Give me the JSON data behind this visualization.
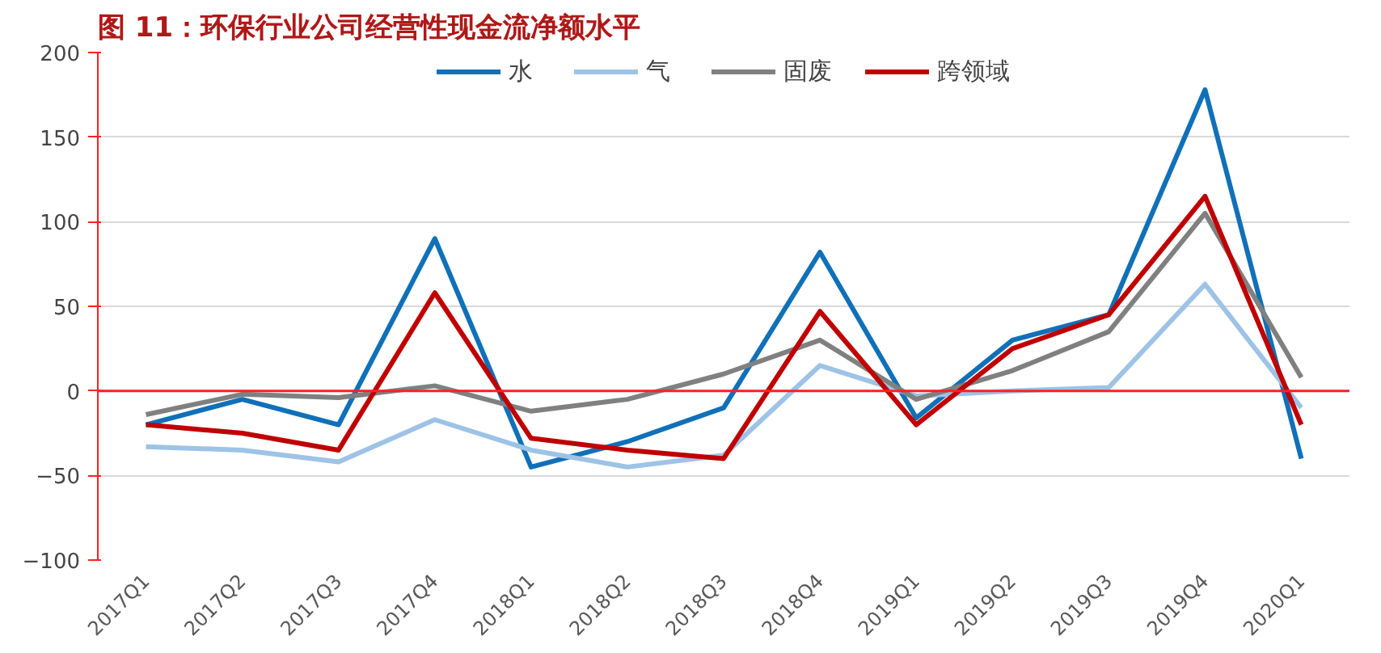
{
  "chart_data": {
    "type": "line",
    "title": "图 11：环保行业公司经营性现金流净额水平",
    "categories": [
      "2017Q1",
      "2017Q2",
      "2017Q3",
      "2017Q4",
      "2018Q1",
      "2018Q2",
      "2018Q3",
      "2018Q4",
      "2019Q1",
      "2019Q2",
      "2019Q3",
      "2019Q4",
      "2020Q1"
    ],
    "series": [
      {
        "name": "水",
        "color": "#1070b8",
        "values": [
          -20,
          -5,
          -20,
          90,
          -45,
          -30,
          -10,
          82,
          -16,
          30,
          45,
          178,
          -40
        ]
      },
      {
        "name": "气",
        "color": "#9dc3e6",
        "values": [
          -33,
          -35,
          -42,
          -17,
          -35,
          -45,
          -38,
          15,
          -3,
          0,
          2,
          63,
          -10
        ]
      },
      {
        "name": "固废",
        "color": "#808080",
        "values": [
          -14,
          -2,
          -4,
          3,
          -12,
          -5,
          10,
          30,
          -5,
          12,
          35,
          105,
          8
        ]
      },
      {
        "name": "跨领域",
        "color": "#c00000",
        "values": [
          -20,
          -25,
          -35,
          58,
          -28,
          -35,
          -40,
          47,
          -20,
          25,
          45,
          115,
          -20
        ]
      }
    ],
    "ref_lines": [
      {
        "axis": "y",
        "value": 0,
        "color": "#ff2020"
      }
    ],
    "ylim": [
      -100,
      200
    ],
    "yticks": [
      -100,
      -50,
      0,
      50,
      100,
      150,
      200
    ],
    "grid": "y",
    "legend": "top",
    "marker": "none",
    "line_style": "solid"
  }
}
